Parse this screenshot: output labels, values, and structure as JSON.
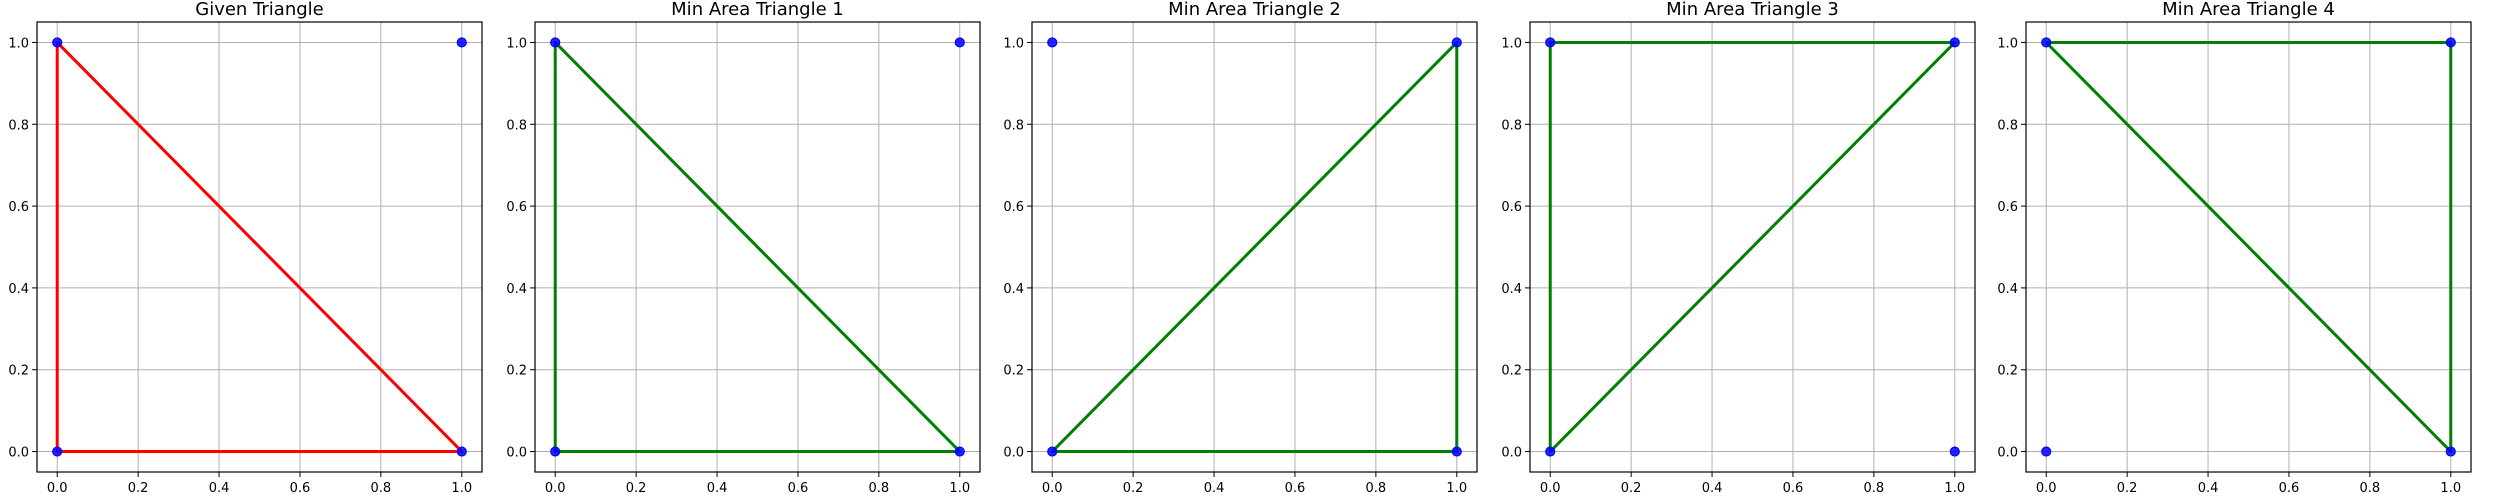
{
  "colors": {
    "given_triangle": "#ff0000",
    "min_area_triangle": "#008000",
    "points": "#0000ff",
    "grid": "#b0b0b0"
  },
  "chart_data": [
    {
      "type": "line",
      "title": "Given Triangle",
      "xlim": [
        -0.05,
        1.05
      ],
      "ylim": [
        -0.05,
        1.05
      ],
      "x_ticks": [
        "0.0",
        "0.2",
        "0.4",
        "0.6",
        "0.8",
        "1.0"
      ],
      "y_ticks": [
        "0.0",
        "0.2",
        "0.4",
        "0.6",
        "0.8",
        "1.0"
      ],
      "grid": true,
      "points": [
        [
          0,
          0
        ],
        [
          1,
          0
        ],
        [
          0,
          1
        ],
        [
          1,
          1
        ]
      ],
      "triangle": [
        [
          0,
          0
        ],
        [
          1,
          0
        ],
        [
          0,
          1
        ]
      ],
      "triangle_color": "#ff0000"
    },
    {
      "type": "line",
      "title": "Min Area Triangle 1",
      "xlim": [
        -0.05,
        1.05
      ],
      "ylim": [
        -0.05,
        1.05
      ],
      "x_ticks": [
        "0.0",
        "0.2",
        "0.4",
        "0.6",
        "0.8",
        "1.0"
      ],
      "y_ticks": [
        "0.0",
        "0.2",
        "0.4",
        "0.6",
        "0.8",
        "1.0"
      ],
      "grid": true,
      "points": [
        [
          0,
          0
        ],
        [
          1,
          0
        ],
        [
          0,
          1
        ],
        [
          1,
          1
        ]
      ],
      "triangle": [
        [
          0,
          0
        ],
        [
          1,
          0
        ],
        [
          0,
          1
        ]
      ],
      "triangle_color": "#008000"
    },
    {
      "type": "line",
      "title": "Min Area Triangle 2",
      "xlim": [
        -0.05,
        1.05
      ],
      "ylim": [
        -0.05,
        1.05
      ],
      "x_ticks": [
        "0.0",
        "0.2",
        "0.4",
        "0.6",
        "0.8",
        "1.0"
      ],
      "y_ticks": [
        "0.0",
        "0.2",
        "0.4",
        "0.6",
        "0.8",
        "1.0"
      ],
      "grid": true,
      "points": [
        [
          0,
          0
        ],
        [
          1,
          0
        ],
        [
          0,
          1
        ],
        [
          1,
          1
        ]
      ],
      "triangle": [
        [
          0,
          0
        ],
        [
          1,
          0
        ],
        [
          1,
          1
        ]
      ],
      "triangle_color": "#008000"
    },
    {
      "type": "line",
      "title": "Min Area Triangle 3",
      "xlim": [
        -0.05,
        1.05
      ],
      "ylim": [
        -0.05,
        1.05
      ],
      "x_ticks": [
        "0.0",
        "0.2",
        "0.4",
        "0.6",
        "0.8",
        "1.0"
      ],
      "y_ticks": [
        "0.0",
        "0.2",
        "0.4",
        "0.6",
        "0.8",
        "1.0"
      ],
      "grid": true,
      "points": [
        [
          0,
          0
        ],
        [
          1,
          0
        ],
        [
          0,
          1
        ],
        [
          1,
          1
        ]
      ],
      "triangle": [
        [
          0,
          0
        ],
        [
          0,
          1
        ],
        [
          1,
          1
        ]
      ],
      "triangle_color": "#008000"
    },
    {
      "type": "line",
      "title": "Min Area Triangle 4",
      "xlim": [
        -0.05,
        1.05
      ],
      "ylim": [
        -0.05,
        1.05
      ],
      "x_ticks": [
        "0.0",
        "0.2",
        "0.4",
        "0.6",
        "0.8",
        "1.0"
      ],
      "y_ticks": [
        "0.0",
        "0.2",
        "0.4",
        "0.6",
        "0.8",
        "1.0"
      ],
      "grid": true,
      "points": [
        [
          0,
          0
        ],
        [
          1,
          0
        ],
        [
          0,
          1
        ],
        [
          1,
          1
        ]
      ],
      "triangle": [
        [
          1,
          0
        ],
        [
          0,
          1
        ],
        [
          1,
          1
        ]
      ],
      "triangle_color": "#008000"
    }
  ]
}
